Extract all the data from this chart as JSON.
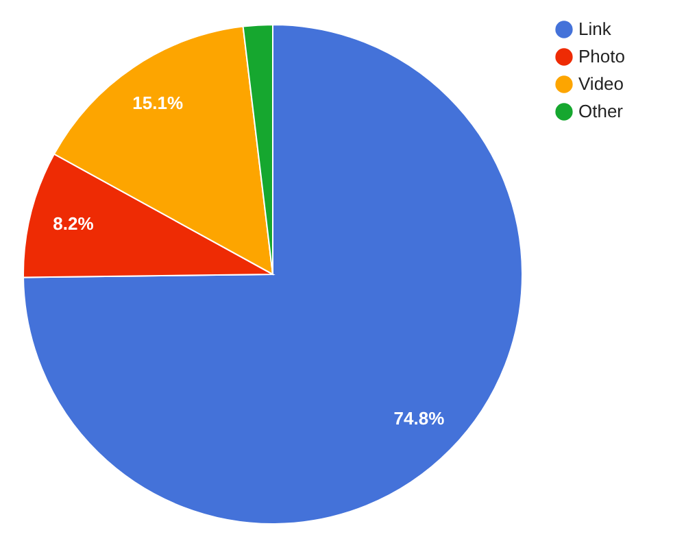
{
  "chart_data": {
    "type": "pie",
    "categories": [
      "Link",
      "Photo",
      "Video",
      "Other"
    ],
    "values": [
      74.8,
      8.2,
      15.1,
      1.9
    ],
    "colors": [
      "#4472d9",
      "#ee2b04",
      "#fda500",
      "#16a72f"
    ],
    "value_labels": [
      "74.8%",
      "8.2%",
      "15.1%",
      null
    ],
    "legend": "top right"
  }
}
